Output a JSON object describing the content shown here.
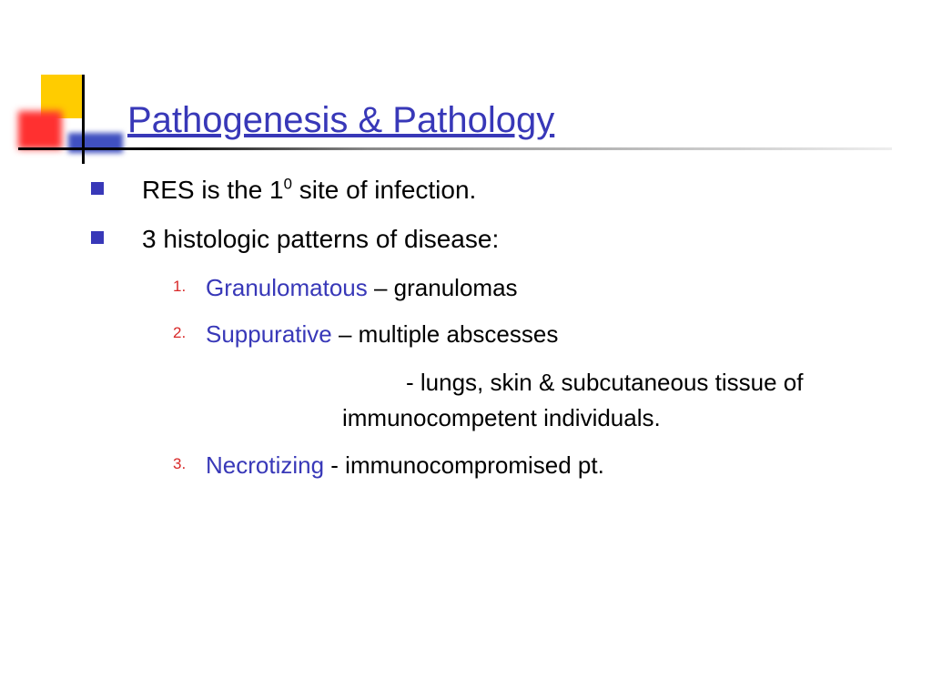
{
  "colors": {
    "title": "#3838b8",
    "bullet": "#3838b8",
    "number": "#d82828",
    "term": "#3838b8",
    "yellow": "#ffcc00",
    "red": "#ff3030",
    "blue": "#4050c0"
  },
  "title": "Pathogenesis & Pathology",
  "bullets": [
    {
      "pre": "RES is the 1",
      "sup": "0",
      "post": " site of infection."
    },
    {
      "pre": "3 histologic patterns of disease:",
      "sup": "",
      "post": ""
    }
  ],
  "numbered": [
    {
      "n": "1.",
      "term": "Granulomatous",
      "rest": " – granulomas"
    },
    {
      "n": "2.",
      "term": "Suppurative",
      "rest": " – multiple abscesses"
    },
    {
      "n": "3.",
      "term": "Necrotizing ",
      "rest": " - immunocompromised pt."
    }
  ],
  "sub_detail": "- lungs, skin & subcutaneous tissue of immunocompetent individuals."
}
